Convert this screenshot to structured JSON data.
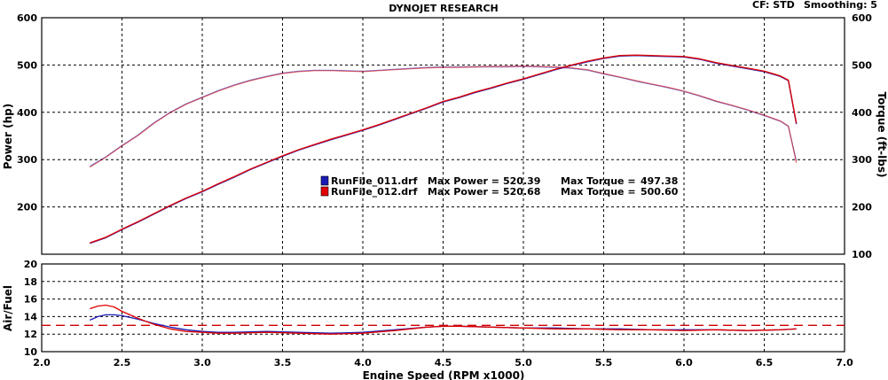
{
  "header": {
    "title": "DYNOJET RESEARCH",
    "cf": "CF: STD",
    "smoothing": "Smoothing: 5"
  },
  "colors": {
    "run1": "#1a1ab4",
    "run2": "#e00000",
    "target": "#cc0000",
    "grid": "#000000"
  },
  "chart_data": [
    {
      "type": "line",
      "ylabel_left": "Power (hp)",
      "ylabel_right": "Torque (ft-lbs)",
      "xlim": [
        2.0,
        7.0
      ],
      "ylim": [
        100,
        600
      ],
      "y_ticks": [
        100,
        200,
        300,
        400,
        500,
        600
      ],
      "y_ticks_left_labels": [
        "200",
        "300",
        "400",
        "500",
        "600"
      ],
      "y_ticks_right_labels": [
        "100",
        "200",
        "300",
        "400",
        "500",
        "600"
      ],
      "grid": true,
      "legend": [
        {
          "file": "RunFile_011.drf",
          "max_power_label": "Max Power =",
          "max_power": "520.39",
          "max_torque_label": "Max Torque =",
          "max_torque": "497.38"
        },
        {
          "file": "RunFile_012.drf",
          "max_power_label": "Max Power =",
          "max_power": "520.68",
          "max_torque_label": "Max Torque =",
          "max_torque": "500.60"
        }
      ],
      "series": [
        {
          "name": "RunFile_011.drf",
          "kind": "power",
          "x": [
            2.3,
            2.4,
            2.5,
            2.6,
            2.7,
            2.8,
            2.9,
            3.0,
            3.1,
            3.2,
            3.3,
            3.4,
            3.5,
            3.6,
            3.7,
            3.8,
            3.9,
            4.0,
            4.1,
            4.2,
            4.3,
            4.4,
            4.5,
            4.6,
            4.7,
            4.8,
            4.9,
            5.0,
            5.1,
            5.2,
            5.3,
            5.4,
            5.5,
            5.6,
            5.7,
            5.8,
            5.9,
            6.0,
            6.1,
            6.2,
            6.3,
            6.4,
            6.5,
            6.6,
            6.65,
            6.7
          ],
          "y": [
            123,
            135,
            152,
            168,
            185,
            202,
            218,
            232,
            248,
            263,
            279,
            293,
            307,
            320,
            331,
            342,
            352,
            362,
            373,
            385,
            397,
            409,
            422,
            431,
            442,
            451,
            461,
            470,
            480,
            490,
            499,
            507,
            514,
            519,
            520,
            519,
            518,
            517,
            512,
            504,
            498,
            492,
            486,
            476,
            467,
            375
          ]
        },
        {
          "name": "RunFile_012.drf",
          "kind": "power",
          "x": [
            2.3,
            2.4,
            2.5,
            2.6,
            2.7,
            2.8,
            2.9,
            3.0,
            3.1,
            3.2,
            3.3,
            3.4,
            3.5,
            3.6,
            3.7,
            3.8,
            3.9,
            4.0,
            4.1,
            4.2,
            4.3,
            4.4,
            4.5,
            4.6,
            4.7,
            4.8,
            4.9,
            5.0,
            5.1,
            5.2,
            5.3,
            5.4,
            5.5,
            5.6,
            5.7,
            5.8,
            5.9,
            6.0,
            6.1,
            6.2,
            6.3,
            6.4,
            6.5,
            6.6,
            6.65,
            6.7
          ],
          "y": [
            124,
            136,
            153,
            169,
            186,
            203,
            219,
            233,
            249,
            264,
            280,
            294,
            308,
            321,
            332,
            343,
            353,
            363,
            374,
            386,
            398,
            410,
            423,
            432,
            443,
            452,
            462,
            471,
            481,
            491,
            500,
            508,
            515,
            520,
            521,
            520,
            519,
            518,
            513,
            505,
            499,
            493,
            487,
            477,
            468,
            377
          ]
        },
        {
          "name": "RunFile_011.drf",
          "kind": "torque",
          "x": [
            2.3,
            2.4,
            2.5,
            2.6,
            2.7,
            2.8,
            2.9,
            3.0,
            3.1,
            3.2,
            3.3,
            3.4,
            3.5,
            3.6,
            3.7,
            3.8,
            3.9,
            4.0,
            4.1,
            4.2,
            4.3,
            4.4,
            4.5,
            4.6,
            4.7,
            4.8,
            4.9,
            5.0,
            5.1,
            5.2,
            5.3,
            5.4,
            5.5,
            5.6,
            5.7,
            5.8,
            5.9,
            6.0,
            6.1,
            6.2,
            6.3,
            6.4,
            6.5,
            6.6,
            6.65,
            6.7
          ],
          "y": [
            286,
            306,
            330,
            352,
            378,
            400,
            418,
            432,
            446,
            458,
            468,
            476,
            483,
            487,
            489,
            489,
            488,
            487,
            489,
            491,
            493,
            495,
            496,
            496,
            496,
            496,
            496,
            497,
            496,
            495,
            493,
            489,
            481,
            474,
            466,
            459,
            452,
            444,
            434,
            423,
            414,
            404,
            393,
            381,
            370,
            297
          ]
        },
        {
          "name": "RunFile_012.drf",
          "kind": "torque",
          "x": [
            2.3,
            2.4,
            2.5,
            2.6,
            2.7,
            2.8,
            2.9,
            3.0,
            3.1,
            3.2,
            3.3,
            3.4,
            3.5,
            3.6,
            3.7,
            3.8,
            3.9,
            4.0,
            4.1,
            4.2,
            4.3,
            4.4,
            4.5,
            4.6,
            4.7,
            4.8,
            4.9,
            5.0,
            5.1,
            5.2,
            5.3,
            5.4,
            5.5,
            5.6,
            5.7,
            5.8,
            5.9,
            6.0,
            6.1,
            6.2,
            6.3,
            6.4,
            6.5,
            6.6,
            6.65,
            6.7
          ],
          "y": [
            284,
            305,
            329,
            351,
            377,
            399,
            417,
            431,
            445,
            457,
            467,
            475,
            482,
            486,
            488,
            488,
            487,
            486,
            488,
            490,
            492,
            494,
            495,
            495,
            496,
            497,
            497,
            498,
            497,
            496,
            494,
            490,
            482,
            475,
            467,
            460,
            453,
            445,
            435,
            424,
            415,
            405,
            394,
            382,
            371,
            293
          ]
        }
      ]
    },
    {
      "type": "line",
      "ylabel": "Air/Fuel",
      "xlabel": "Engine Speed (RPM x1000)",
      "xlim": [
        2.0,
        7.0
      ],
      "ylim": [
        10,
        20
      ],
      "y_ticks": [
        10,
        12,
        14,
        16,
        18,
        20
      ],
      "x_ticks": [
        2.0,
        2.5,
        3.0,
        3.5,
        4.0,
        4.5,
        5.0,
        5.5,
        6.0,
        6.5,
        7.0
      ],
      "x_tick_labels": [
        "2.0",
        "2.5",
        "3.0",
        "3.5",
        "4.0",
        "4.5",
        "5.0",
        "5.5",
        "6.0",
        "6.5",
        "7.0"
      ],
      "grid": true,
      "target_afr": 13.0,
      "series": [
        {
          "name": "RunFile_011.drf",
          "x": [
            2.3,
            2.35,
            2.4,
            2.45,
            2.5,
            2.6,
            2.7,
            2.8,
            2.9,
            3.0,
            3.1,
            3.2,
            3.4,
            3.6,
            3.8,
            4.0,
            4.2,
            4.4,
            4.5,
            4.6,
            4.8,
            5.0,
            5.2,
            5.4,
            5.6,
            5.8,
            6.0,
            6.2,
            6.4,
            6.6,
            6.7
          ],
          "y": [
            13.6,
            14.0,
            14.2,
            14.2,
            14.1,
            13.7,
            13.2,
            12.8,
            12.5,
            12.3,
            12.2,
            12.2,
            12.3,
            12.2,
            12.1,
            12.2,
            12.5,
            12.8,
            12.9,
            12.9,
            12.8,
            12.7,
            12.7,
            12.6,
            12.6,
            12.5,
            12.5,
            12.5,
            12.4,
            12.5,
            12.6
          ]
        },
        {
          "name": "RunFile_012.drf",
          "x": [
            2.3,
            2.35,
            2.4,
            2.45,
            2.5,
            2.6,
            2.7,
            2.8,
            2.9,
            3.0,
            3.1,
            3.2,
            3.4,
            3.6,
            3.8,
            4.0,
            4.2,
            4.4,
            4.5,
            4.6,
            4.8,
            5.0,
            5.2,
            5.4,
            5.6,
            5.8,
            6.0,
            6.2,
            6.4,
            6.6,
            6.7
          ],
          "y": [
            14.9,
            15.2,
            15.3,
            15.1,
            14.6,
            13.8,
            13.1,
            12.6,
            12.3,
            12.2,
            12.1,
            12.1,
            12.2,
            12.1,
            12.0,
            12.1,
            12.4,
            12.8,
            12.9,
            12.9,
            12.8,
            12.7,
            12.6,
            12.6,
            12.5,
            12.5,
            12.4,
            12.5,
            12.4,
            12.5,
            12.6
          ]
        }
      ]
    }
  ]
}
